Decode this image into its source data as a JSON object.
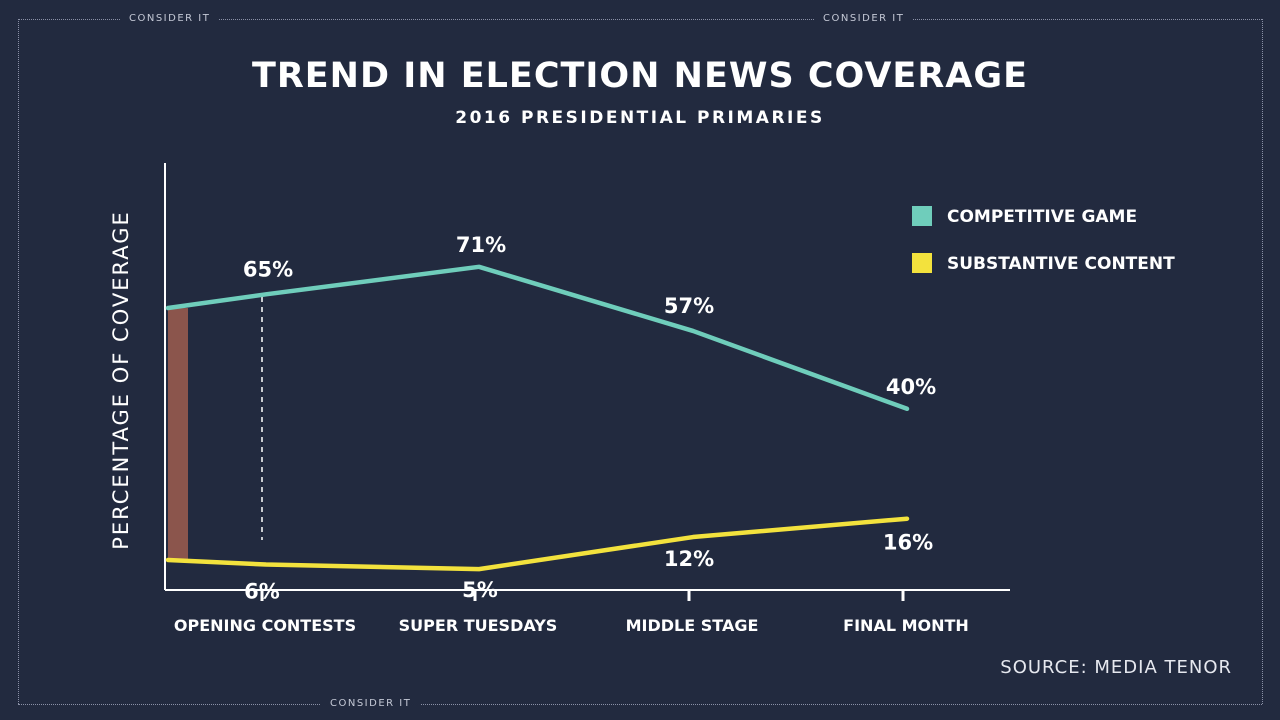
{
  "frame": {
    "tags": [
      "CONSIDER IT",
      "CONSIDER IT",
      "CONSIDER IT"
    ]
  },
  "header": {
    "title": "TREND IN ELECTION NEWS COVERAGE",
    "subtitle": "2016 PRESIDENTIAL PRIMARIES"
  },
  "footer": {
    "source": "SOURCE: MEDIA TENOR"
  },
  "colors": {
    "background": "#222a3f",
    "competitive": "#6fcdbb",
    "substantive": "#f3e23d",
    "highlight_bar": "#8b554c",
    "axis": "#ffffff"
  },
  "chart_data": {
    "type": "line",
    "title": "TREND IN ELECTION NEWS COVERAGE",
    "subtitle": "2016 PRESIDENTIAL PRIMARIES",
    "xlabel": "",
    "ylabel": "PERCENTAGE OF COVERAGE",
    "categories": [
      "OPENING CONTESTS",
      "SUPER TUESDAYS",
      "MIDDLE STAGE",
      "FINAL MONTH"
    ],
    "ylim": [
      0,
      100
    ],
    "grid": false,
    "legend": "top-right",
    "series": [
      {
        "name": "COMPETITIVE GAME",
        "color": "#6fcdbb",
        "values": [
          65,
          71,
          57,
          40
        ],
        "labels": [
          "65%",
          "71%",
          "57%",
          "40%"
        ]
      },
      {
        "name": "SUBSTANTIVE CONTENT",
        "color": "#f3e23d",
        "values": [
          6,
          5,
          12,
          16
        ],
        "labels": [
          "6%",
          "5%",
          "12%",
          "16%"
        ]
      }
    ]
  }
}
